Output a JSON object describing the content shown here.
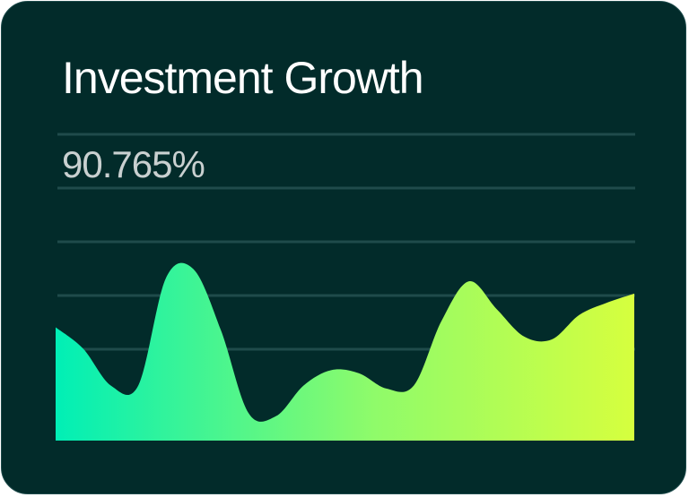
{
  "card": {
    "title": "Investment Growth",
    "value": "90.765%"
  },
  "colors": {
    "background": "#022b2a",
    "gridline": "#1f4b4b",
    "gradient_start": "#00efb6",
    "gradient_mid": "#8ffb6a",
    "gradient_end": "#d6ff3e"
  },
  "chart_data": {
    "type": "area",
    "title": "Investment Growth",
    "xlabel": "",
    "ylabel": "",
    "grid": true,
    "legend": "none",
    "ylim": [
      0,
      100
    ],
    "values": [
      37,
      30,
      18,
      18,
      53,
      56,
      36,
      9,
      8,
      18,
      23,
      22,
      17,
      18,
      39,
      52,
      43,
      34,
      33,
      41,
      45,
      48
    ]
  }
}
